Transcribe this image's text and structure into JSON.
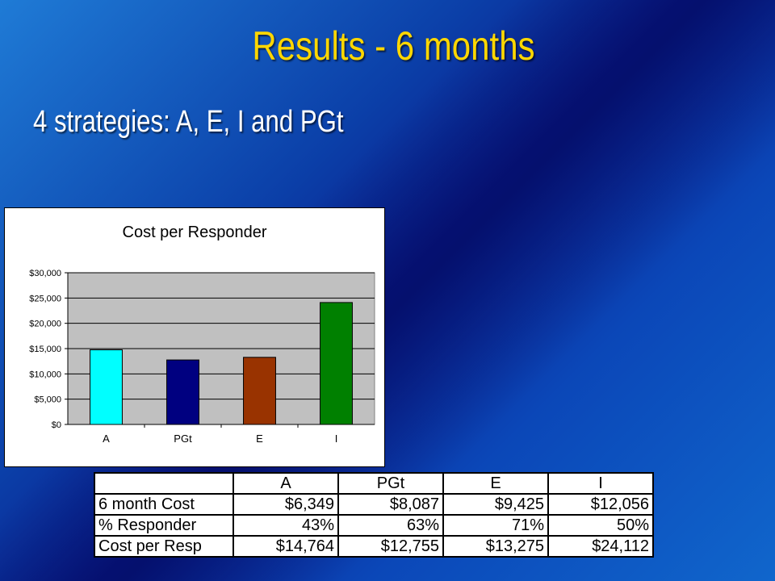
{
  "slide": {
    "title": "Results - 6 months",
    "bullet": "4 strategies: A, E, I and PGt"
  },
  "chart_data": {
    "type": "bar",
    "title": "Cost per Responder",
    "categories": [
      "A",
      "PGt",
      "E",
      "I"
    ],
    "values": [
      14764,
      12755,
      13275,
      24112
    ],
    "bar_colors": [
      "#00ffff",
      "#000080",
      "#993300",
      "#008000"
    ],
    "ylim": [
      0,
      30000
    ],
    "yticks": [
      0,
      5000,
      10000,
      15000,
      20000,
      25000,
      30000
    ],
    "ytick_labels": [
      "$0",
      "$5,000",
      "$10,000",
      "$15,000",
      "$20,000",
      "$25,000",
      "$30,000"
    ],
    "grid": true,
    "legend": false,
    "plot_background": "#c0c0c0"
  },
  "table": {
    "header": [
      "",
      "A",
      "PGt",
      "E",
      "I"
    ],
    "rows": [
      [
        "6 month Cost",
        "$6,349",
        "$8,087",
        "$9,425",
        "$12,056"
      ],
      [
        "% Responder",
        "43%",
        "63%",
        "71%",
        "50%"
      ],
      [
        "Cost per Resp",
        "$14,764",
        "$12,755",
        "$13,275",
        "$24,112"
      ]
    ]
  }
}
